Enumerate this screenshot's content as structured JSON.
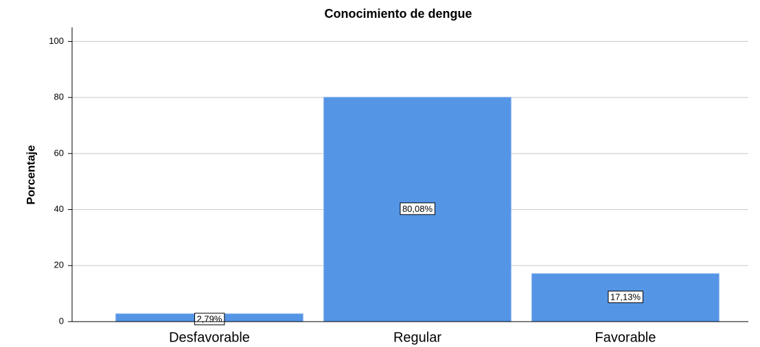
{
  "chart_data": {
    "type": "bar",
    "title": "Conocimiento de dengue",
    "y_label": "Porcentaje",
    "categories": [
      "Desfavorable",
      "Regular",
      "Favorable"
    ],
    "values": [
      2.79,
      80.08,
      17.13
    ],
    "value_labels": [
      "2,79%",
      "80,08%",
      "17,13%"
    ],
    "color": "#5595e5",
    "ylim": [
      0,
      105
    ],
    "yticks": [
      0,
      20,
      40,
      60,
      80,
      100
    ],
    "grid": true
  }
}
